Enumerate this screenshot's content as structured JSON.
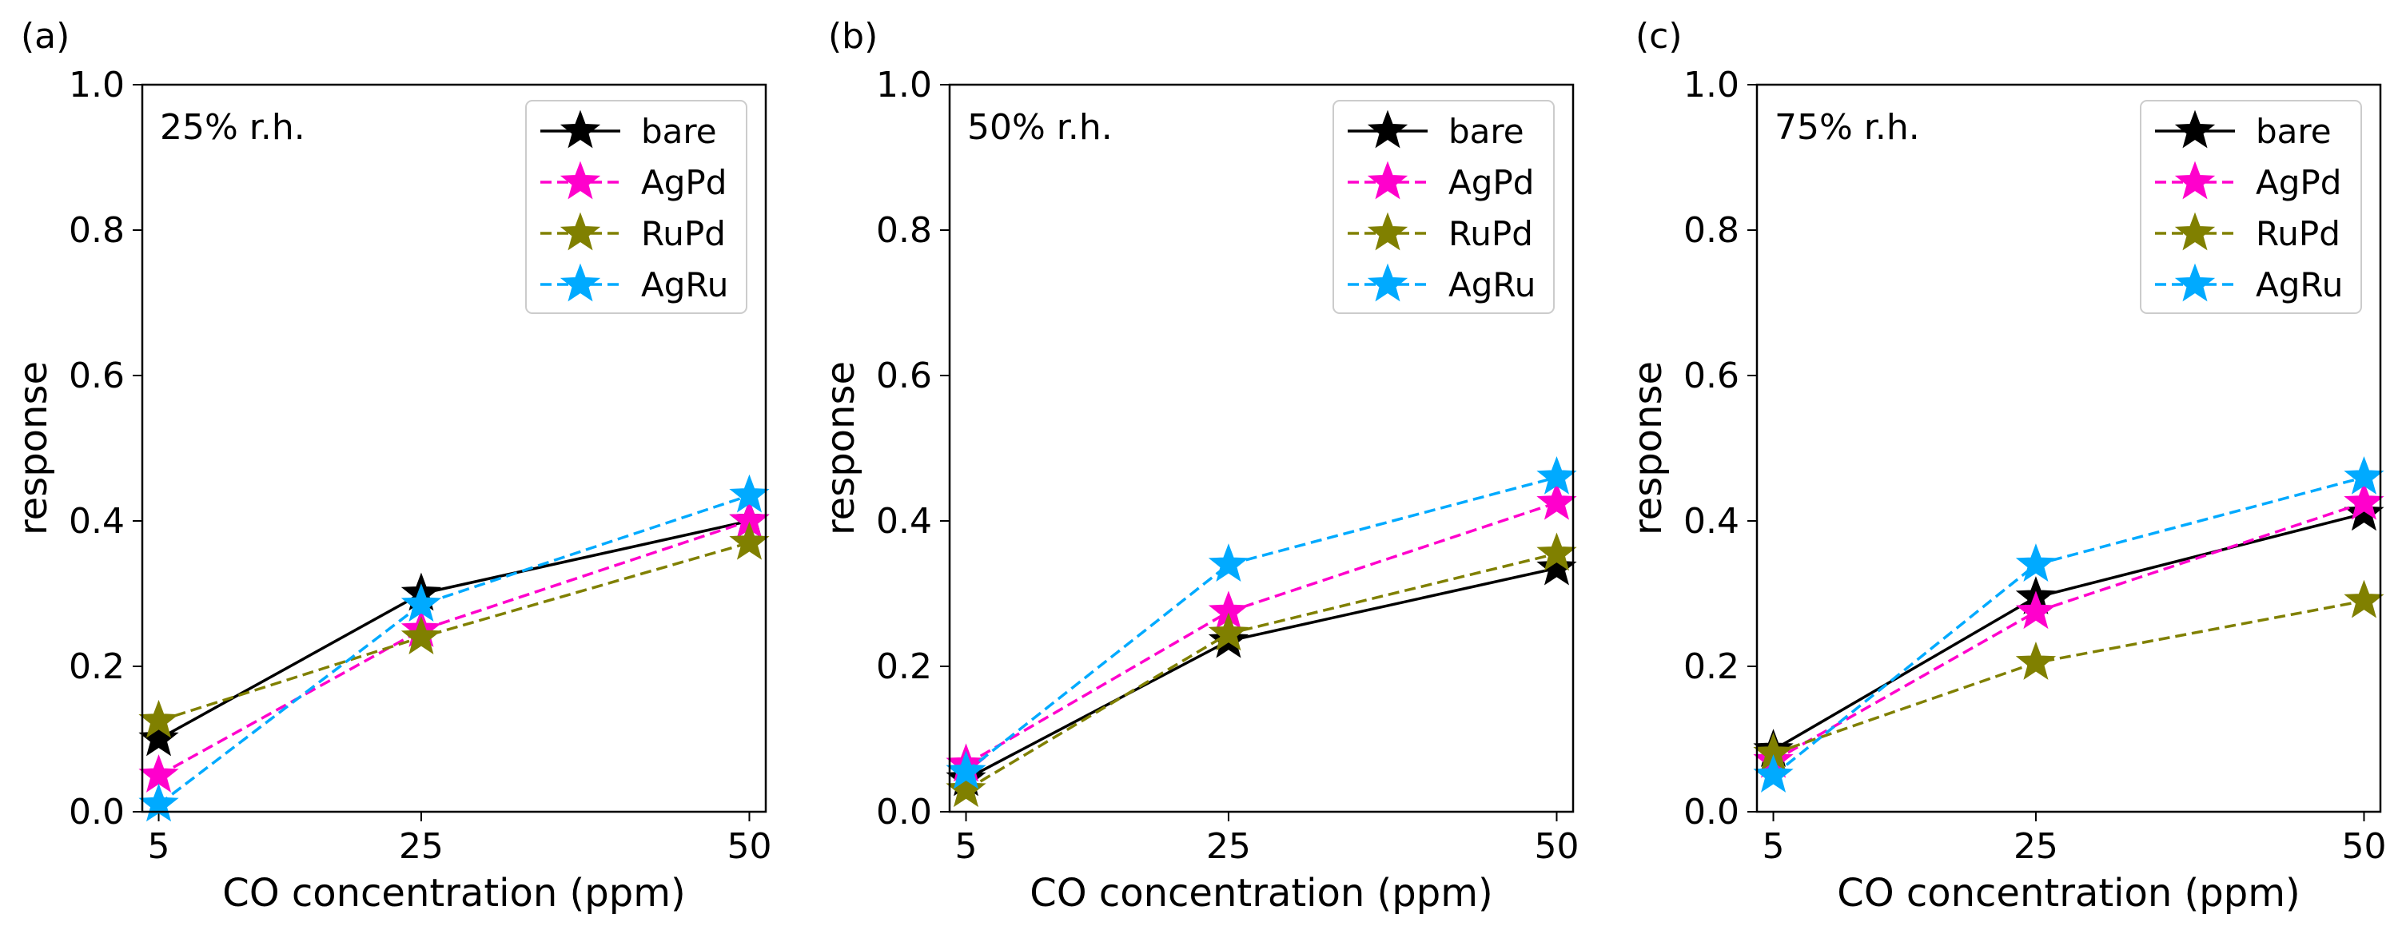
{
  "figure": {
    "background": "#ffffff"
  },
  "chart_data": [
    {
      "type": "line",
      "panel_label": "(a)",
      "annotation": "25% r.h.",
      "xlabel": "CO concentration (ppm)",
      "ylabel": "response",
      "x": [
        5,
        25,
        50
      ],
      "x_tick_labels": [
        "5",
        "25",
        "50"
      ],
      "xlim": [
        3.75,
        51.25
      ],
      "ylim": [
        0.0,
        1.0
      ],
      "y_ticks": [
        "0.0",
        "0.2",
        "0.4",
        "0.6",
        "0.8",
        "1.0"
      ],
      "legend_position": "top-right",
      "series": [
        {
          "name": "bare",
          "color": "#000000",
          "linestyle": "solid",
          "marker": "star",
          "values": [
            0.1,
            0.3,
            0.4
          ]
        },
        {
          "name": "AgPd",
          "color": "#ff00cc",
          "linestyle": "dashed",
          "marker": "star",
          "values": [
            0.05,
            0.25,
            0.4
          ]
        },
        {
          "name": "RuPd",
          "color": "#808000",
          "linestyle": "dashed",
          "marker": "star",
          "values": [
            0.125,
            0.24,
            0.37
          ]
        },
        {
          "name": "AgRu",
          "color": "#00aaff",
          "linestyle": "dashed",
          "marker": "star",
          "values": [
            0.01,
            0.285,
            0.435
          ]
        }
      ]
    },
    {
      "type": "line",
      "panel_label": "(b)",
      "annotation": "50% r.h.",
      "xlabel": "CO concentration (ppm)",
      "ylabel": "response",
      "x": [
        5,
        25,
        50
      ],
      "x_tick_labels": [
        "5",
        "25",
        "50"
      ],
      "xlim": [
        3.75,
        51.25
      ],
      "ylim": [
        0.0,
        1.0
      ],
      "y_ticks": [
        "0.0",
        "0.2",
        "0.4",
        "0.6",
        "0.8",
        "1.0"
      ],
      "legend_position": "top-right",
      "series": [
        {
          "name": "bare",
          "color": "#000000",
          "linestyle": "solid",
          "marker": "star",
          "values": [
            0.045,
            0.235,
            0.335
          ]
        },
        {
          "name": "AgPd",
          "color": "#ff00cc",
          "linestyle": "dashed",
          "marker": "star",
          "values": [
            0.065,
            0.275,
            0.425
          ]
        },
        {
          "name": "RuPd",
          "color": "#808000",
          "linestyle": "dashed",
          "marker": "star",
          "values": [
            0.03,
            0.245,
            0.355
          ]
        },
        {
          "name": "AgRu",
          "color": "#00aaff",
          "linestyle": "dashed",
          "marker": "star",
          "values": [
            0.055,
            0.34,
            0.46
          ]
        }
      ]
    },
    {
      "type": "line",
      "panel_label": "(c)",
      "annotation": "75% r.h.",
      "xlabel": "CO concentration (ppm)",
      "ylabel": "response",
      "x": [
        5,
        25,
        50
      ],
      "x_tick_labels": [
        "5",
        "25",
        "50"
      ],
      "xlim": [
        3.75,
        51.25
      ],
      "ylim": [
        0.0,
        1.0
      ],
      "y_ticks": [
        "0.0",
        "0.2",
        "0.4",
        "0.6",
        "0.8",
        "1.0"
      ],
      "legend_position": "top-right",
      "series": [
        {
          "name": "bare",
          "color": "#000000",
          "linestyle": "solid",
          "marker": "star",
          "values": [
            0.085,
            0.295,
            0.41
          ]
        },
        {
          "name": "AgPd",
          "color": "#ff00cc",
          "linestyle": "dashed",
          "marker": "star",
          "values": [
            0.07,
            0.275,
            0.425
          ]
        },
        {
          "name": "RuPd",
          "color": "#808000",
          "linestyle": "dashed",
          "marker": "star",
          "values": [
            0.08,
            0.205,
            0.29
          ]
        },
        {
          "name": "AgRu",
          "color": "#00aaff",
          "linestyle": "dashed",
          "marker": "star",
          "values": [
            0.05,
            0.34,
            0.46
          ]
        }
      ]
    }
  ]
}
